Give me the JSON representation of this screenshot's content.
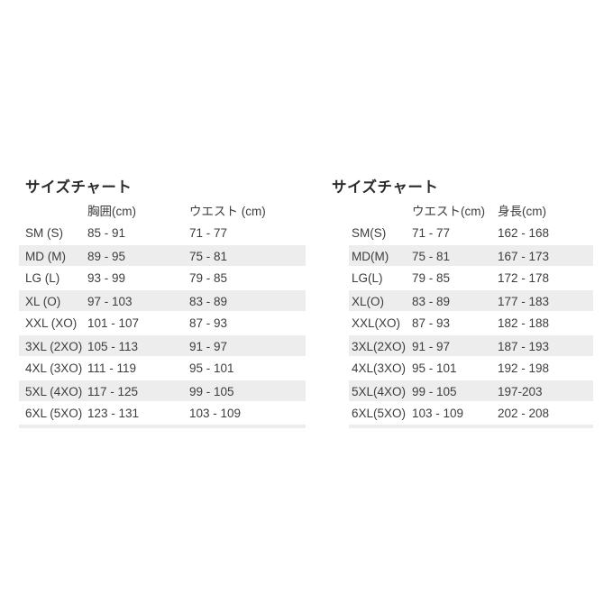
{
  "page": {
    "background_color": "#ffffff",
    "row_stripe_color": "#ededed",
    "text_color": "#3d3d3d"
  },
  "chart_data": [
    {
      "type": "table",
      "title": "サイズチャート",
      "columns": [
        "",
        "胸囲(cm)",
        "ウエスト (cm)"
      ],
      "rows": [
        [
          "SM (S)",
          "85 - 91",
          "71 - 77"
        ],
        [
          "MD (M)",
          "89 - 95",
          "75 - 81"
        ],
        [
          "LG (L)",
          "93 - 99",
          "79 - 85"
        ],
        [
          "XL (O)",
          "97 - 103",
          "83 - 89"
        ],
        [
          "XXL (XO)",
          "101 - 107",
          "87 - 93"
        ],
        [
          "3XL (2XO)",
          "105 - 113",
          "91 - 97"
        ],
        [
          "4XL (3XO)",
          "111 - 119",
          "95 - 101"
        ],
        [
          "5XL (4XO)",
          "117 - 125",
          "99 - 105"
        ],
        [
          "6XL (5XO)",
          "123 - 131",
          "103 - 109"
        ]
      ],
      "layout_hints": {
        "stripe_rows": "even",
        "position": "left"
      }
    },
    {
      "type": "table",
      "title": "サイズチャート",
      "columns": [
        "",
        "ウエスト(cm)",
        "身長(cm)"
      ],
      "rows": [
        [
          "SM(S)",
          "71 - 77",
          "162 - 168"
        ],
        [
          "MD(M)",
          "75 - 81",
          "167 - 173"
        ],
        [
          "LG(L)",
          "79 - 85",
          "172 - 178"
        ],
        [
          "XL(O)",
          "83 - 89",
          "177 - 183"
        ],
        [
          "XXL(XO)",
          "87 - 93",
          "182 - 188"
        ],
        [
          "3XL(2XO)",
          "91 - 97",
          "187 - 193"
        ],
        [
          "4XL(3XO)",
          "95 - 101",
          "192 - 198"
        ],
        [
          "5XL(4XO)",
          "99 - 105",
          "197-203"
        ],
        [
          "6XL(5XO)",
          "103 - 109",
          "202 - 208"
        ]
      ],
      "layout_hints": {
        "stripe_rows": "even",
        "position": "right"
      }
    }
  ]
}
